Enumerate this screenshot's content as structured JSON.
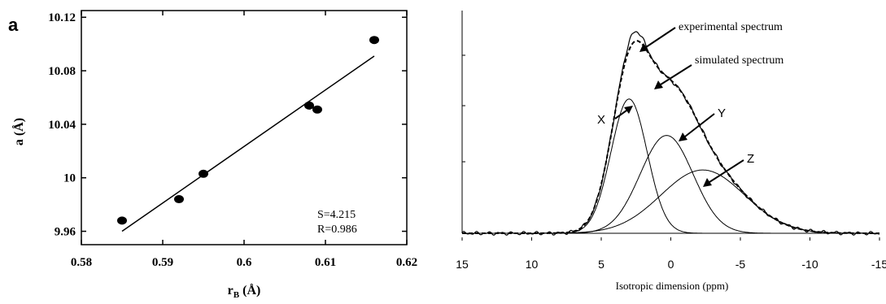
{
  "chart_data": [
    {
      "type": "scatter",
      "panel_label": "a",
      "xlabel": "r",
      "xlabel_sub": "B",
      "xlabel_unit": " (Å)",
      "ylabel": "a (Å)",
      "xlim": [
        0.58,
        0.62
      ],
      "ylim": [
        9.95,
        10.125
      ],
      "x_ticks": [
        "0.58",
        "0.59",
        "0.6",
        "0.61",
        "0.62"
      ],
      "y_ticks": [
        "9.96",
        "10",
        "10.04",
        "10.08",
        "10.12"
      ],
      "points": [
        {
          "x": 0.585,
          "y": 9.968
        },
        {
          "x": 0.592,
          "y": 9.984
        },
        {
          "x": 0.595,
          "y": 10.003
        },
        {
          "x": 0.608,
          "y": 10.054
        },
        {
          "x": 0.609,
          "y": 10.051
        },
        {
          "x": 0.616,
          "y": 10.103
        }
      ],
      "fit_line": {
        "x": [
          0.585,
          0.616
        ],
        "y": [
          9.96,
          10.091
        ]
      },
      "annotations": [
        "S=4.215",
        "R=0.986"
      ]
    },
    {
      "type": "line",
      "xlabel": "Isotropic dimension (ppm)",
      "xlim": [
        15,
        -15
      ],
      "x_ticks": [
        "15",
        "10",
        "5",
        "0",
        "-5",
        "-10",
        "-15"
      ],
      "series": [
        {
          "name": "experimental spectrum",
          "style": "solid"
        },
        {
          "name": "simulated spectrum",
          "style": "dashed"
        },
        {
          "name": "X",
          "center": 3.0,
          "height": 0.7,
          "width": 1.3
        },
        {
          "name": "Y",
          "center": 0.3,
          "height": 0.51,
          "width": 1.9
        },
        {
          "name": "Z",
          "center": -2.3,
          "height": 0.33,
          "width": 3.0
        }
      ],
      "labels": {
        "experimental": "experimental spectrum",
        "simulated": "simulated spectrum",
        "X": "X",
        "Y": "Y",
        "Z": "Z"
      }
    }
  ]
}
